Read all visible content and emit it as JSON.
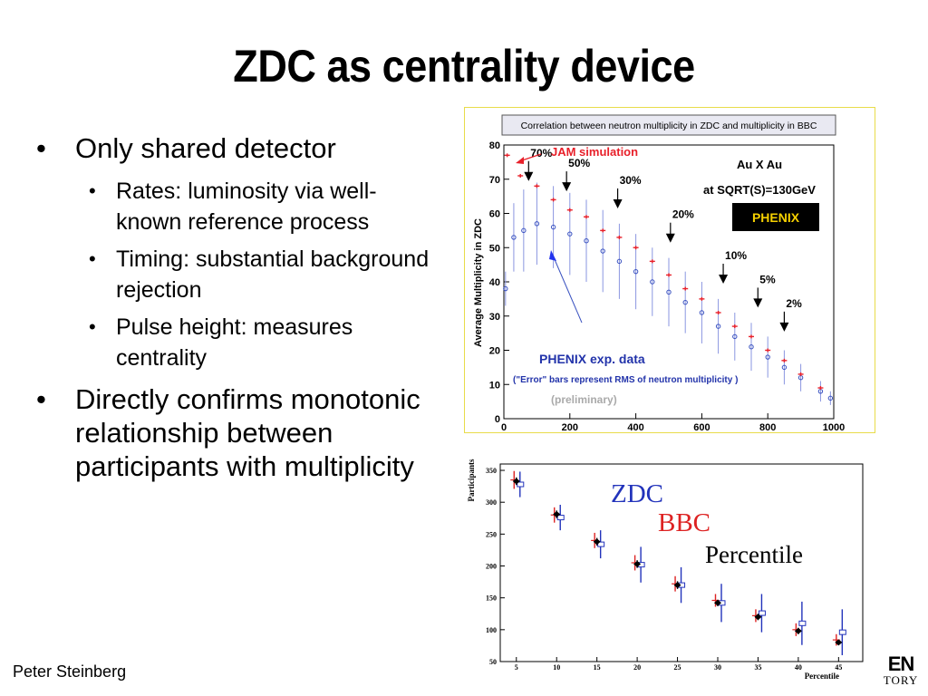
{
  "slide": {
    "title": "ZDC as centrality device",
    "footer": "Peter Steinberg",
    "corner_logo": {
      "line1": "EN",
      "line2": "TORY"
    }
  },
  "bullets": [
    {
      "text": "Only shared detector",
      "sub": [
        "Rates: luminosity via well-known reference process",
        "Timing: substantial background rejection",
        "Pulse height: measures centrality"
      ]
    },
    {
      "text": "Directly confirms monotonic relationship between participants with multiplicity",
      "sub": []
    }
  ],
  "chart_data": [
    {
      "type": "scatter",
      "title": "Correlation between neutron multiplicity in ZDC and multiplicity in BBC",
      "ylabel": "Average Multiplicity in ZDC",
      "xlim": [
        0,
        1000
      ],
      "ylim": [
        0,
        80
      ],
      "xticks": [
        "0",
        "200",
        "400",
        "600",
        "800",
        "1000"
      ],
      "yticks": [
        "0",
        "10",
        "20",
        "30",
        "40",
        "50",
        "60",
        "70",
        "80"
      ],
      "annotations": {
        "jam": "JAM simulation",
        "collision": "Au X Au",
        "energy": "at SQRT(S)=130GeV",
        "phenix_logo": "PHENIX",
        "exp_data": "PHENIX exp. data",
        "error_note": "(\"Error\" bars represent RMS of neutron multiplicity )",
        "preliminary": "(preliminary)"
      },
      "percentile_markers": [
        {
          "label": "70%",
          "x": 75,
          "y": 70
        },
        {
          "label": "50%",
          "x": 190,
          "y": 67
        },
        {
          "label": "30%",
          "x": 345,
          "y": 62
        },
        {
          "label": "20%",
          "x": 505,
          "y": 52
        },
        {
          "label": "10%",
          "x": 665,
          "y": 40
        },
        {
          "label": "5%",
          "x": 770,
          "y": 33
        },
        {
          "label": "2%",
          "x": 850,
          "y": 26
        }
      ],
      "series": [
        {
          "name": "JAM simulation",
          "color": "#e8202a",
          "x": [
            10,
            50,
            100,
            150,
            200,
            250,
            300,
            350,
            400,
            450,
            500,
            550,
            600,
            650,
            700,
            750,
            800,
            850,
            900,
            960
          ],
          "y": [
            77,
            71,
            68,
            64,
            61,
            59,
            55,
            53,
            50,
            46,
            42,
            38,
            35,
            31,
            27,
            24,
            20,
            17,
            13,
            9
          ]
        },
        {
          "name": "PHENIX exp. data",
          "color": "#3a52c0",
          "x": [
            5,
            30,
            60,
            100,
            150,
            200,
            250,
            300,
            350,
            400,
            450,
            500,
            550,
            600,
            650,
            700,
            750,
            800,
            850,
            900,
            960,
            990
          ],
          "y": [
            38,
            53,
            55,
            57,
            56,
            54,
            52,
            49,
            46,
            43,
            40,
            37,
            34,
            31,
            27,
            24,
            21,
            18,
            15,
            12,
            8,
            6
          ],
          "rms": [
            5,
            10,
            12,
            12,
            12,
            12,
            12,
            12,
            11,
            11,
            10,
            10,
            9,
            9,
            8,
            7,
            7,
            6,
            5,
            4,
            3,
            2
          ]
        }
      ]
    },
    {
      "type": "scatter",
      "xlabel": "Percentile",
      "ylabel": "Participants",
      "xlim": [
        3,
        48
      ],
      "ylim": [
        50,
        360
      ],
      "xticks": [
        "5",
        "10",
        "15",
        "20",
        "25",
        "30",
        "35",
        "40",
        "45"
      ],
      "yticks": [
        "50",
        "100",
        "150",
        "200",
        "250",
        "300",
        "350"
      ],
      "legend_labels": {
        "zdc": "ZDC",
        "bbc": "BBC",
        "percentile": "Percentile"
      },
      "series": [
        {
          "name": "ZDC",
          "color": "#2233bb",
          "x": [
            5,
            10,
            15,
            20,
            25,
            30,
            35,
            40,
            45
          ],
          "y": [
            328,
            276,
            234,
            202,
            170,
            142,
            126,
            110,
            96
          ],
          "err": [
            20,
            20,
            22,
            28,
            28,
            30,
            30,
            34,
            36
          ]
        },
        {
          "name": "BBC",
          "color": "#dd2222",
          "x": [
            5,
            10,
            15,
            20,
            25,
            30,
            35,
            40,
            45
          ],
          "y": [
            335,
            280,
            240,
            205,
            172,
            146,
            122,
            100,
            84
          ],
          "err": [
            14,
            12,
            12,
            12,
            12,
            10,
            10,
            10,
            9
          ]
        },
        {
          "name": "Percentile",
          "color": "#000000",
          "x": [
            5,
            10,
            15,
            20,
            25,
            30,
            35,
            40,
            45
          ],
          "y": [
            333,
            281,
            238,
            203,
            170,
            142,
            120,
            98,
            80
          ],
          "err": [
            6,
            6,
            6,
            6,
            6,
            5,
            5,
            5,
            4
          ]
        }
      ]
    }
  ]
}
